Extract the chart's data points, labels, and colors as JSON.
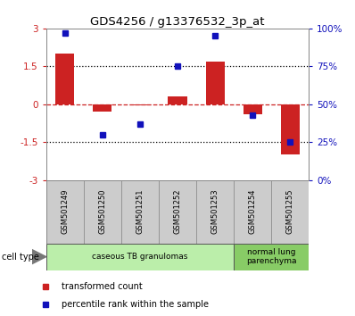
{
  "title": "GDS4256 / g13376532_3p_at",
  "samples": [
    "GSM501249",
    "GSM501250",
    "GSM501251",
    "GSM501252",
    "GSM501253",
    "GSM501254",
    "GSM501255"
  ],
  "red_values": [
    2.0,
    -0.3,
    -0.05,
    0.3,
    1.7,
    -0.4,
    -2.0
  ],
  "blue_values": [
    97,
    30,
    37,
    75,
    95,
    43,
    25
  ],
  "ylim_left": [
    -3,
    3
  ],
  "ylim_right": [
    0,
    100
  ],
  "yticks_left": [
    -3,
    -1.5,
    0,
    1.5,
    3
  ],
  "ytick_labels_left": [
    "-3",
    "-1.5",
    "0",
    "1.5",
    "3"
  ],
  "yticks_right": [
    0,
    25,
    50,
    75,
    100
  ],
  "ytick_labels_right": [
    "0%",
    "25%",
    "50%",
    "75%",
    "100%"
  ],
  "red_color": "#cc2222",
  "blue_color": "#1111bb",
  "bar_width": 0.5,
  "cell_groups": [
    {
      "label": "caseous TB granulomas",
      "start": 0,
      "end": 5,
      "color": "#bbeeaa"
    },
    {
      "label": "normal lung\nparenchyma",
      "start": 5,
      "end": 7,
      "color": "#88cc66"
    }
  ],
  "legend_items": [
    {
      "label": "transformed count",
      "color": "#cc2222"
    },
    {
      "label": "percentile rank within the sample",
      "color": "#1111bb"
    }
  ],
  "cell_type_label": "cell type",
  "bg_color": "#ffffff",
  "plot_bg": "#ffffff",
  "xticklabel_bg": "#cccccc",
  "xticklabel_border": "#888888"
}
